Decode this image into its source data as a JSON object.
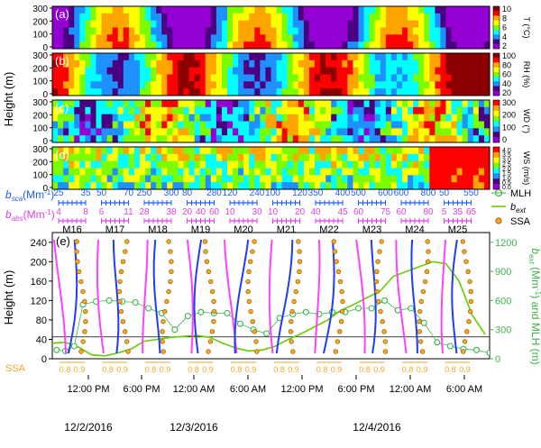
{
  "figure": {
    "y_axis_label": "Height (m)",
    "date_labels": [
      "12/2/2016",
      "12/3/2016",
      "12/4/2016"
    ]
  },
  "panels": [
    {
      "letter": "(a)",
      "var": "T",
      "unit_label": "T (°C)",
      "ticks": [
        "10",
        "8",
        "6",
        "4",
        "2"
      ],
      "colors": [
        "#8b0000",
        "#ff0000",
        "#ffa500",
        "#ffff00",
        "#7cfc00",
        "#00ffff",
        "#1e90ff",
        "#4b0082",
        "#9400d3"
      ]
    },
    {
      "letter": "(b)",
      "var": "RH",
      "unit_label": "RH (%)",
      "ticks": [
        "100",
        "80",
        "60",
        "40",
        "20"
      ],
      "colors": [
        "#8b0000",
        "#ff0000",
        "#ffa500",
        "#ffff00",
        "#7cfc00",
        "#00ffff",
        "#1e90ff",
        "#4b0082",
        "#9400d3"
      ]
    },
    {
      "letter": "(c)",
      "var": "WD",
      "unit_label": "WD (°)",
      "ticks": [
        "300",
        "200",
        "100",
        "0"
      ],
      "colors": [
        "#ff0000",
        "#ffa500",
        "#ffff00",
        "#7cfc00",
        "#00ffff",
        "#1e90ff",
        "#4b0082",
        "#9400d3"
      ]
    },
    {
      "letter": "(d)",
      "var": "WS",
      "unit_label": "WS (m/s)",
      "ticks": [
        "4.0",
        "3.5",
        "3.0",
        "2.5",
        "2.0",
        "1.5",
        "1.0",
        "0.5",
        "0.0"
      ],
      "colors": [
        "#ff0000",
        "#ffa500",
        "#ffff00",
        "#7cfc00",
        "#00ffff",
        "#1e90ff",
        "#4b0082",
        "#9400d3"
      ]
    }
  ],
  "panel_y_ticks": [
    "300",
    "200",
    "100",
    "0"
  ],
  "legend_labels": {
    "bsca": "b",
    "bsca_sub": "sca",
    "bsca_unit": "(Mm",
    "babs": "b",
    "babs_sub": "abs",
    "babs_unit": "(Mm",
    "sup": "-1",
    "close": ")"
  },
  "legend": {
    "mlh": "MLH",
    "bext": "b",
    "bext_sub": "ext",
    "ssa": "SSA"
  },
  "flights": [
    {
      "id": "M16",
      "sca": [
        "25",
        "35"
      ],
      "abs": [
        "4",
        "8"
      ]
    },
    {
      "id": "M17",
      "sca": [
        "50",
        "70"
      ],
      "abs": [
        "6",
        "11"
      ]
    },
    {
      "id": "M18",
      "sca": [
        "250",
        "300"
      ],
      "abs": [
        "28",
        "38"
      ]
    },
    {
      "id": "M19",
      "sca": [
        "80",
        "280"
      ],
      "abs": [
        "20",
        "40",
        "60"
      ]
    },
    {
      "id": "M20",
      "sca": [
        "120",
        "240"
      ],
      "abs": [
        "10",
        "30"
      ]
    },
    {
      "id": "M21",
      "sca": [
        "100",
        "120"
      ],
      "abs": [
        "10",
        "20"
      ]
    },
    {
      "id": "M22",
      "sca": [
        "350",
        "400"
      ],
      "abs": [
        "40",
        "45"
      ]
    },
    {
      "id": "M23",
      "sca": [
        "500",
        "600"
      ],
      "abs": [
        "60",
        "75"
      ]
    },
    {
      "id": "M24",
      "sca": [
        "600",
        "800"
      ],
      "abs": [
        "60",
        "80"
      ]
    },
    {
      "id": "M25",
      "sca": [
        "50",
        "550"
      ],
      "abs": [
        "5",
        "35",
        "65"
      ]
    }
  ],
  "chart_data": {
    "type": "line",
    "panel_label": "(e)",
    "xlabel": "",
    "ylabel": "Height (m)",
    "y2label_parts": [
      "b",
      "ext",
      " (Mm",
      "-1",
      ") and MLH (m)"
    ],
    "x_ticks": [
      "12:00 PM",
      "6:00 PM",
      "12:00 AM",
      "6:00 AM",
      "12:00 PM",
      "6:00 PM",
      "12:00 AM",
      "6:00 AM"
    ],
    "ylim": [
      0,
      260
    ],
    "y_ticks": [
      "0",
      "40",
      "80",
      "120",
      "160",
      "200",
      "240"
    ],
    "y2lim": [
      0,
      1300
    ],
    "y2_ticks": [
      "0",
      "300",
      "600",
      "900",
      "1200"
    ],
    "ssa_label": "SSA",
    "ssa_ticks": [
      "0.8",
      "0.9"
    ],
    "reference_height": 45,
    "mlh_x": [
      1,
      3,
      5,
      7,
      10,
      13,
      16,
      19,
      22,
      25,
      28,
      31,
      34,
      37,
      40,
      43,
      46,
      49,
      52,
      55,
      58,
      61,
      64,
      67,
      70,
      73,
      76,
      79,
      82,
      85,
      88,
      91,
      94,
      97,
      100
    ],
    "mlh": [
      90,
      80,
      130,
      560,
      590,
      600,
      590,
      580,
      520,
      470,
      300,
      440,
      480,
      470,
      470,
      360,
      300,
      260,
      420,
      460,
      480,
      460,
      480,
      480,
      520,
      520,
      600,
      500,
      520,
      370,
      170,
      130,
      100,
      90,
      60
    ],
    "bext_x": [
      0,
      3,
      6,
      9,
      12,
      15,
      18,
      21,
      24,
      27,
      30,
      33,
      36,
      39,
      42,
      45,
      48,
      51,
      54,
      57,
      60,
      63,
      66,
      69,
      72,
      75,
      78,
      81,
      84,
      87,
      90,
      93,
      96,
      99
    ],
    "bext": [
      160,
      170,
      120,
      40,
      30,
      60,
      100,
      180,
      200,
      220,
      230,
      240,
      220,
      160,
      110,
      80,
      90,
      130,
      200,
      260,
      330,
      400,
      500,
      560,
      630,
      700,
      850,
      900,
      950,
      1000,
      980,
      800,
      450,
      250
    ]
  }
}
